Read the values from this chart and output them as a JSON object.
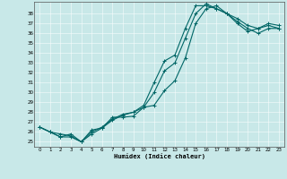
{
  "bg_color": "#c8e8e8",
  "grid_color": "#b0d8d8",
  "line_color": "#006666",
  "xlabel": "Humidex (Indice chaleur)",
  "xlim": [
    -0.5,
    23.5
  ],
  "ylim": [
    24.5,
    39.2
  ],
  "xticks": [
    0,
    1,
    2,
    3,
    4,
    5,
    6,
    7,
    8,
    9,
    10,
    11,
    12,
    13,
    14,
    15,
    16,
    17,
    18,
    19,
    20,
    21,
    22,
    23
  ],
  "yticks": [
    25,
    26,
    27,
    28,
    29,
    30,
    31,
    32,
    33,
    34,
    35,
    36,
    37,
    38
  ],
  "line1_x": [
    0,
    1,
    2,
    3,
    4,
    5,
    6,
    7,
    8,
    9,
    10,
    11,
    12,
    13,
    14,
    15,
    16,
    17,
    18,
    19,
    20,
    21,
    22,
    23
  ],
  "line1_y": [
    26.5,
    26.0,
    25.8,
    25.6,
    25.0,
    26.2,
    26.4,
    27.5,
    27.5,
    27.6,
    28.5,
    28.7,
    30.2,
    31.2,
    33.5,
    37.0,
    38.5,
    38.8,
    38.0,
    37.2,
    36.5,
    36.0,
    36.5,
    36.5
  ],
  "line2_x": [
    0,
    1,
    2,
    3,
    4,
    5,
    6,
    7,
    8,
    9,
    10,
    11,
    12,
    13,
    14,
    15,
    16,
    17,
    18,
    19,
    20,
    21,
    22,
    23
  ],
  "line2_y": [
    26.5,
    26.0,
    25.5,
    25.5,
    25.0,
    25.8,
    26.4,
    27.2,
    27.7,
    28.0,
    28.7,
    31.0,
    33.2,
    33.8,
    36.5,
    38.8,
    38.8,
    38.5,
    38.0,
    37.0,
    36.2,
    36.5,
    37.0,
    36.8
  ],
  "line3_x": [
    0,
    1,
    2,
    3,
    4,
    5,
    6,
    7,
    8,
    9,
    10,
    11,
    12,
    13,
    14,
    15,
    16,
    17,
    18,
    19,
    20,
    21,
    22,
    23
  ],
  "line3_y": [
    26.5,
    26.0,
    25.5,
    25.8,
    25.0,
    26.0,
    26.5,
    27.3,
    27.8,
    28.0,
    28.5,
    30.0,
    32.2,
    33.0,
    35.5,
    38.0,
    39.0,
    38.5,
    38.0,
    37.5,
    36.8,
    36.5,
    36.8,
    36.5
  ]
}
